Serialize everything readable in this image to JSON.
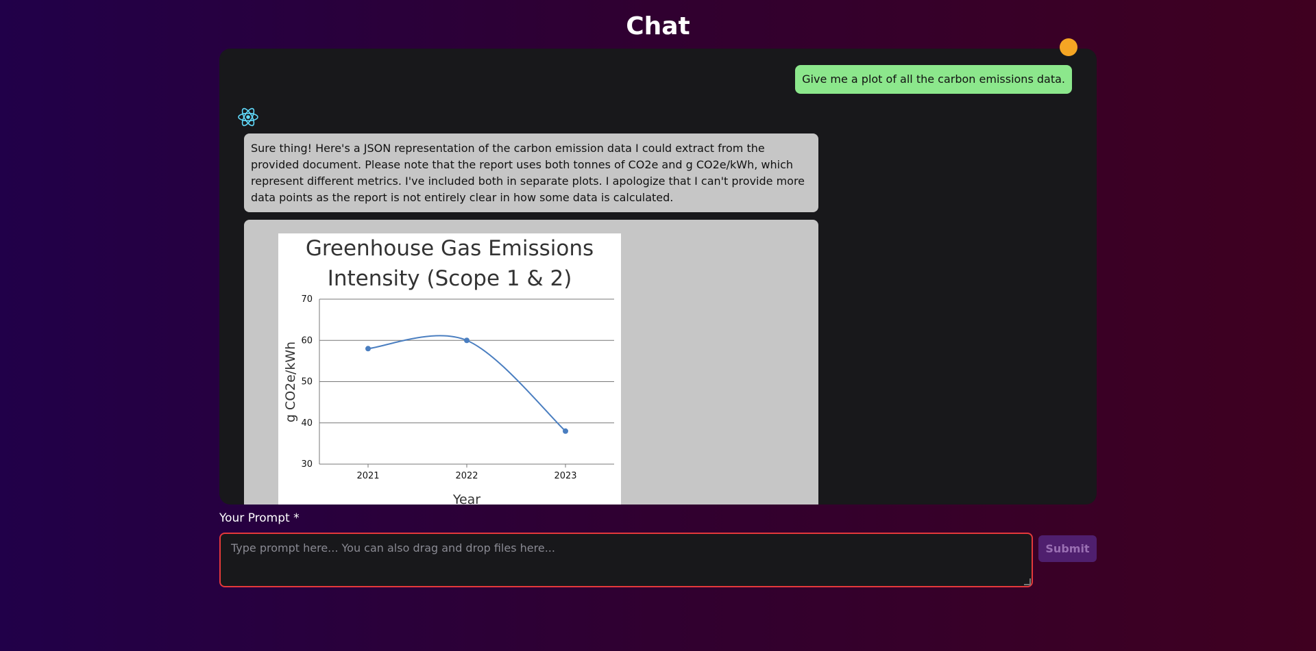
{
  "header": {
    "title": "Chat"
  },
  "colors": {
    "user_bubble": "#8ce78c",
    "bot_bubble": "#c6c6c6",
    "panel": "#18181b",
    "avatar": "#f5a524",
    "input_border": "#e5393b",
    "submit_bg": "#4f1f6e",
    "line": "#4a7ec0"
  },
  "messages": {
    "user_message": "Give me a plot of all the carbon emissions data.",
    "bot_icon": "react-atom-icon",
    "bot_text": "Sure thing! Here's a JSON representation of the carbon emission data I could extract from the provided document. Please note that the report uses both tonnes of CO2e and g CO2e/kWh, which represent different metrics. I've included both in separate plots. I apologize that I can't provide more data points as the report is not entirely clear in how some data is calculated."
  },
  "chart_data": {
    "type": "line",
    "title_lines": [
      "Greenhouse Gas Emissions",
      "Intensity (Scope 1 & 2)"
    ],
    "xlabel": "Year",
    "ylabel": "g CO2e/kWh",
    "x": [
      "2021",
      "2022",
      "2023"
    ],
    "series": [
      {
        "values": [
          58,
          60,
          38
        ]
      }
    ],
    "ylim": [
      30,
      70
    ],
    "yticks": [
      "70",
      "60",
      "50",
      "40",
      "30"
    ],
    "grid": true,
    "smooth": true
  },
  "prompt": {
    "label": "Your Prompt *",
    "placeholder": "Type prompt here... You can also drag and drop files here...",
    "value": "",
    "submit_label": "Submit"
  }
}
